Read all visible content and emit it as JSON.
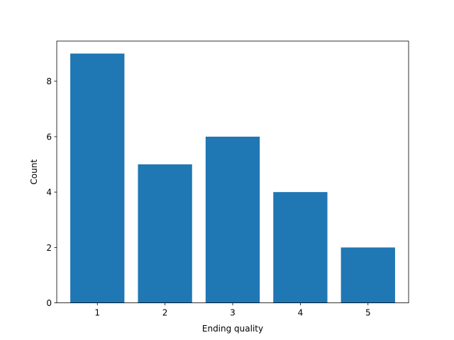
{
  "chart_data": {
    "type": "bar",
    "title": "",
    "xlabel": "Ending quality",
    "ylabel": "Count",
    "categories": [
      "1",
      "2",
      "3",
      "4",
      "5"
    ],
    "values": [
      9,
      5,
      6,
      4,
      2
    ],
    "ylim": [
      0,
      9.45
    ],
    "yticks": [
      0,
      2,
      4,
      6,
      8
    ],
    "ytick_labels": [
      "0",
      "2",
      "4",
      "6",
      "8"
    ],
    "bar_color": "#1f77b4",
    "grid": false,
    "legend": "none"
  }
}
